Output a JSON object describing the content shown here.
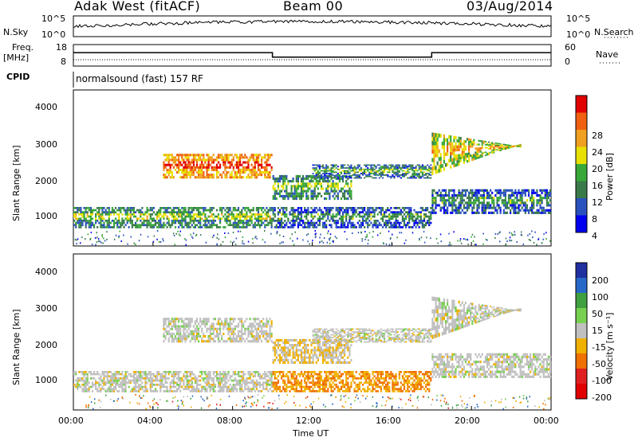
{
  "header": {
    "station": "Adak West (fitACF)",
    "beam": "Beam 00",
    "date": "03/Aug/2014"
  },
  "noise_panel": {
    "left_label": "N.Sky",
    "right_label": "N.Search",
    "left_ticks": [
      "10^5",
      "10^0"
    ],
    "right_ticks": [
      "10^5",
      "10^0"
    ]
  },
  "freq_panel": {
    "left_label_1": "Freq.",
    "left_label_2": "[MHz]",
    "right_label": "Nave",
    "left_ticks": [
      "18",
      "8"
    ],
    "right_ticks": [
      "60",
      "0"
    ],
    "freq_segments": [
      {
        "from": "00:00",
        "to": "10:00",
        "value": 13.5
      },
      {
        "from": "10:00",
        "to": "18:00",
        "value": 11.0
      },
      {
        "from": "18:00",
        "to": "24:00",
        "value": 13.5
      }
    ]
  },
  "cpid": {
    "label": "CPID",
    "program": "normalsound (fast) 157 RF"
  },
  "x_axis": {
    "label": "Time UT",
    "ticks": [
      "00:00",
      "04:00",
      "08:00",
      "12:00",
      "16:00",
      "20:00",
      "00:00"
    ]
  },
  "power_panel": {
    "ylabel": "Slant Range [km]",
    "yticks": [
      "4000",
      "3000",
      "2000",
      "1000"
    ],
    "colorbar_label": "Power [dB]",
    "colorbar_ticks": [
      "28",
      "24",
      "20",
      "16",
      "12",
      "8",
      "4"
    ],
    "colors": [
      "#0000ee",
      "#2a52be",
      "#3a7a4a",
      "#38a838",
      "#e8e000",
      "#f0a020",
      "#f06010",
      "#e00000"
    ]
  },
  "velocity_panel": {
    "ylabel": "Slant Range [km]",
    "yticks": [
      "4000",
      "3000",
      "2000",
      "1000"
    ],
    "colorbar_label": "Velocity [m s⁻¹]",
    "colorbar_ticks": [
      "200",
      "100",
      "50",
      "15",
      "-15",
      "-50",
      "-100",
      "-200"
    ],
    "colors": [
      "#2030a0",
      "#2868c8",
      "#40a040",
      "#78d050",
      "#c0c0c0",
      "#f0b000",
      "#f07000",
      "#e02020",
      "#e00000"
    ]
  },
  "chart_data": {
    "type": "heatmap",
    "title": "Adak West (fitACF)  Beam 00  03/Aug/2014",
    "xlabel": "Time UT",
    "ylabel": "Slant Range [km]",
    "xlim_hours": [
      0,
      24
    ],
    "ylim_km": [
      200,
      4600
    ],
    "power_range_db": [
      0,
      30
    ],
    "velocity_range_ms": [
      -250,
      250
    ],
    "freq_mhz": [
      {
        "start_hour": 0,
        "end_hour": 10,
        "value": 13.5
      },
      {
        "start_hour": 10,
        "end_hour": 18,
        "value": 11.0
      },
      {
        "start_hour": 18,
        "end_hour": 24,
        "value": 13.5
      }
    ],
    "echo_bands": [
      {
        "name": "lower",
        "start_hour": 0,
        "end_hour": 10,
        "range_km": [
          700,
          1300
        ],
        "power_db": 12,
        "velocity_ms": 0
      },
      {
        "name": "upper-arc",
        "start_hour": 4.5,
        "end_hour": 10,
        "range_km": [
          2100,
          2800
        ],
        "power_db": 24,
        "velocity_ms": 0
      },
      {
        "name": "mid",
        "start_hour": 10,
        "end_hour": 14,
        "range_km": [
          1500,
          2200
        ],
        "power_db": 12,
        "velocity_ms": -15
      },
      {
        "name": "lower-day",
        "start_hour": 10,
        "end_hour": 18,
        "range_km": [
          700,
          1300
        ],
        "power_db": 8,
        "velocity_ms": -60
      },
      {
        "name": "upper-day",
        "start_hour": 12,
        "end_hour": 18,
        "range_km": [
          2100,
          2500
        ],
        "power_db": 10,
        "velocity_ms": 0
      },
      {
        "name": "evening",
        "start_hour": 18,
        "end_hour": 22.5,
        "range_km": [
          2200,
          3400
        ],
        "power_db": 18,
        "velocity_ms": 0
      },
      {
        "name": "evening-lower",
        "start_hour": 18,
        "end_hour": 24,
        "range_km": [
          1100,
          1800
        ],
        "power_db": 8,
        "velocity_ms": 0
      }
    ]
  }
}
